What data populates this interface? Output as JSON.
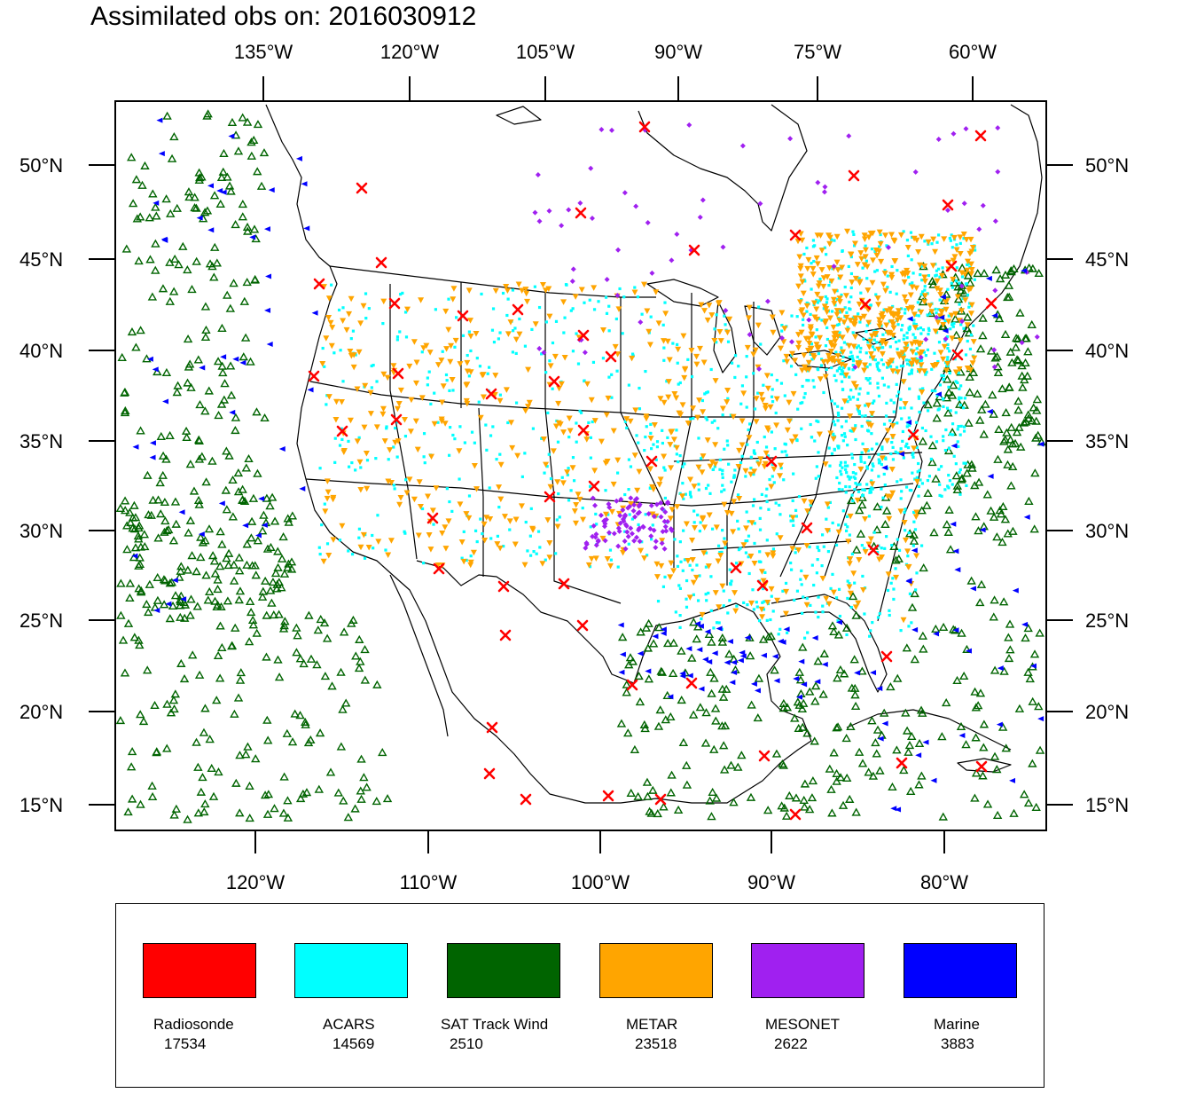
{
  "title": "Assimilated obs on: 2016030912",
  "axes": {
    "top_lon_labels": [
      "135°W",
      "120°W",
      "105°W",
      "90°W",
      "75°W",
      "60°W"
    ],
    "bottom_lon_labels": [
      "120°W",
      "110°W",
      "100°W",
      "90°W",
      "80°W"
    ],
    "left_lat_labels": [
      "50°N",
      "45°N",
      "40°N",
      "35°N",
      "30°N",
      "25°N",
      "20°N",
      "15°N"
    ],
    "right_lat_labels": [
      "50°N",
      "45°N",
      "40°N",
      "35°N",
      "30°N",
      "25°N",
      "20°N",
      "15°N"
    ]
  },
  "legend": [
    {
      "name": "Radiosonde",
      "count": "17534",
      "color": "#ff0000",
      "marker": "x-cross"
    },
    {
      "name": "ACARS",
      "count": "14569",
      "color": "#00ffff",
      "marker": "dot"
    },
    {
      "name": "SAT Track Wind",
      "count": "2510",
      "color": "#006400",
      "marker": "triangle-up"
    },
    {
      "name": "METAR",
      "count": "23518",
      "color": "#ffa500",
      "marker": "triangle-down"
    },
    {
      "name": "MESONET",
      "count": "2622",
      "color": "#a020f0",
      "marker": "diamond"
    },
    {
      "name": "Marine",
      "count": "3883",
      "color": "#0000ff",
      "marker": "triangle-left"
    }
  ],
  "colors": {
    "coastline": "#000000",
    "frame": "#000000",
    "background": "#ffffff"
  }
}
